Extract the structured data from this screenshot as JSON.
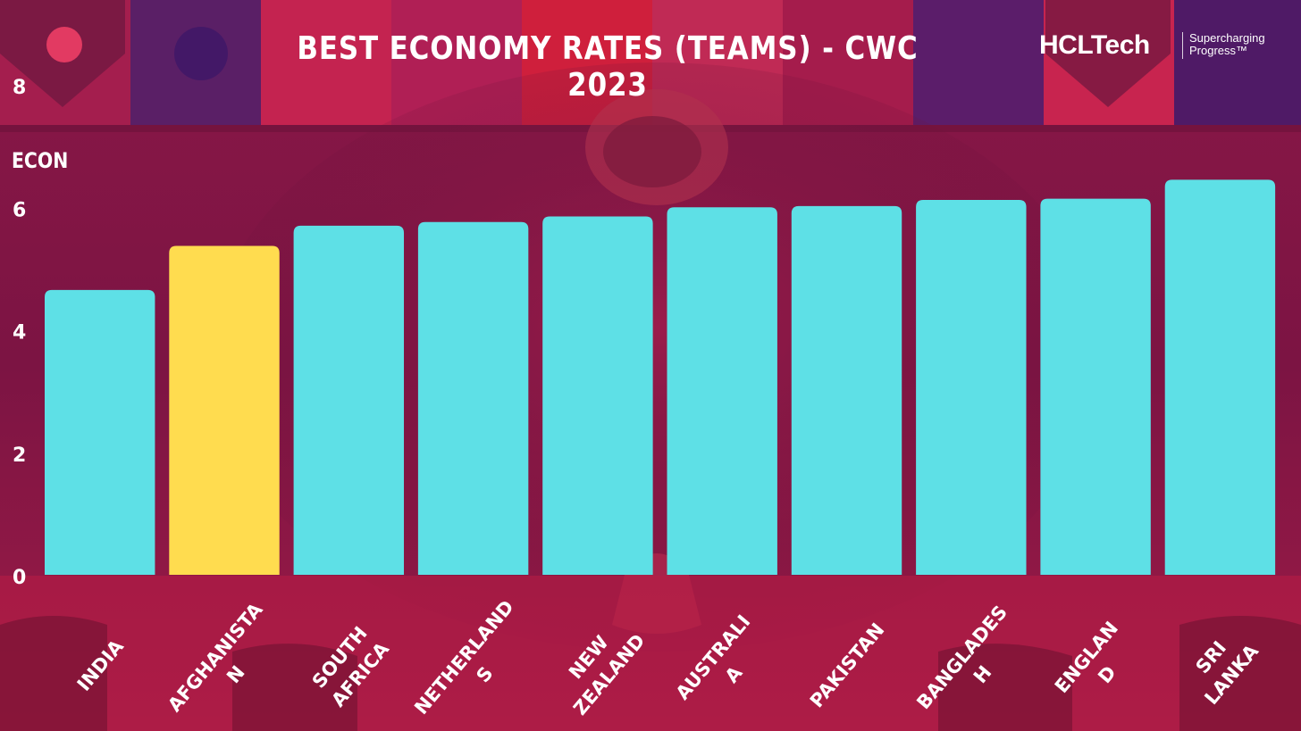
{
  "chart_data": {
    "type": "bar",
    "title": "BEST ECONOMY RATES (TEAMS) - CWC 2023",
    "ylabel": "ECON",
    "xlabel": "",
    "ylim": [
      0,
      8
    ],
    "yticks": [
      0,
      2,
      4,
      6,
      8
    ],
    "categories": [
      "INDIA",
      "AFGHANISTAN",
      "SOUTH AFRICA",
      "NETHERLANDS",
      "NEW ZEALAND",
      "AUSTRALIA",
      "PAKISTAN",
      "BANGLADESH",
      "ENGLAND",
      "SRI LANKA"
    ],
    "category_label_lines": [
      [
        "INDIA"
      ],
      [
        "AFGHANISTA",
        "N"
      ],
      [
        "SOUTH",
        "AFRICA"
      ],
      [
        "NETHERLAND",
        "S"
      ],
      [
        "NEW",
        "ZEALAND"
      ],
      [
        "AUSTRALI",
        "A"
      ],
      [
        "PAKISTAN"
      ],
      [
        "BANGLADES",
        "H"
      ],
      [
        "ENGLAN",
        "D"
      ],
      [
        "SRI",
        "LANKA"
      ]
    ],
    "values": [
      4.65,
      5.37,
      5.7,
      5.76,
      5.85,
      6.0,
      6.02,
      6.12,
      6.14,
      6.45
    ],
    "highlight": "AFGHANISTAN",
    "colors": {
      "bar": "#5ee0e6",
      "highlight": "#ffdc4f",
      "text": "#ffffff"
    },
    "grid": false,
    "legend": "none"
  },
  "brand": {
    "name": "HCLTech",
    "tagline_1": "Supercharging",
    "tagline_2": "Progress™"
  },
  "background": {
    "theme": "crimson-magenta",
    "colors": [
      "#7a1540",
      "#c21f4d",
      "#3a1460"
    ]
  }
}
